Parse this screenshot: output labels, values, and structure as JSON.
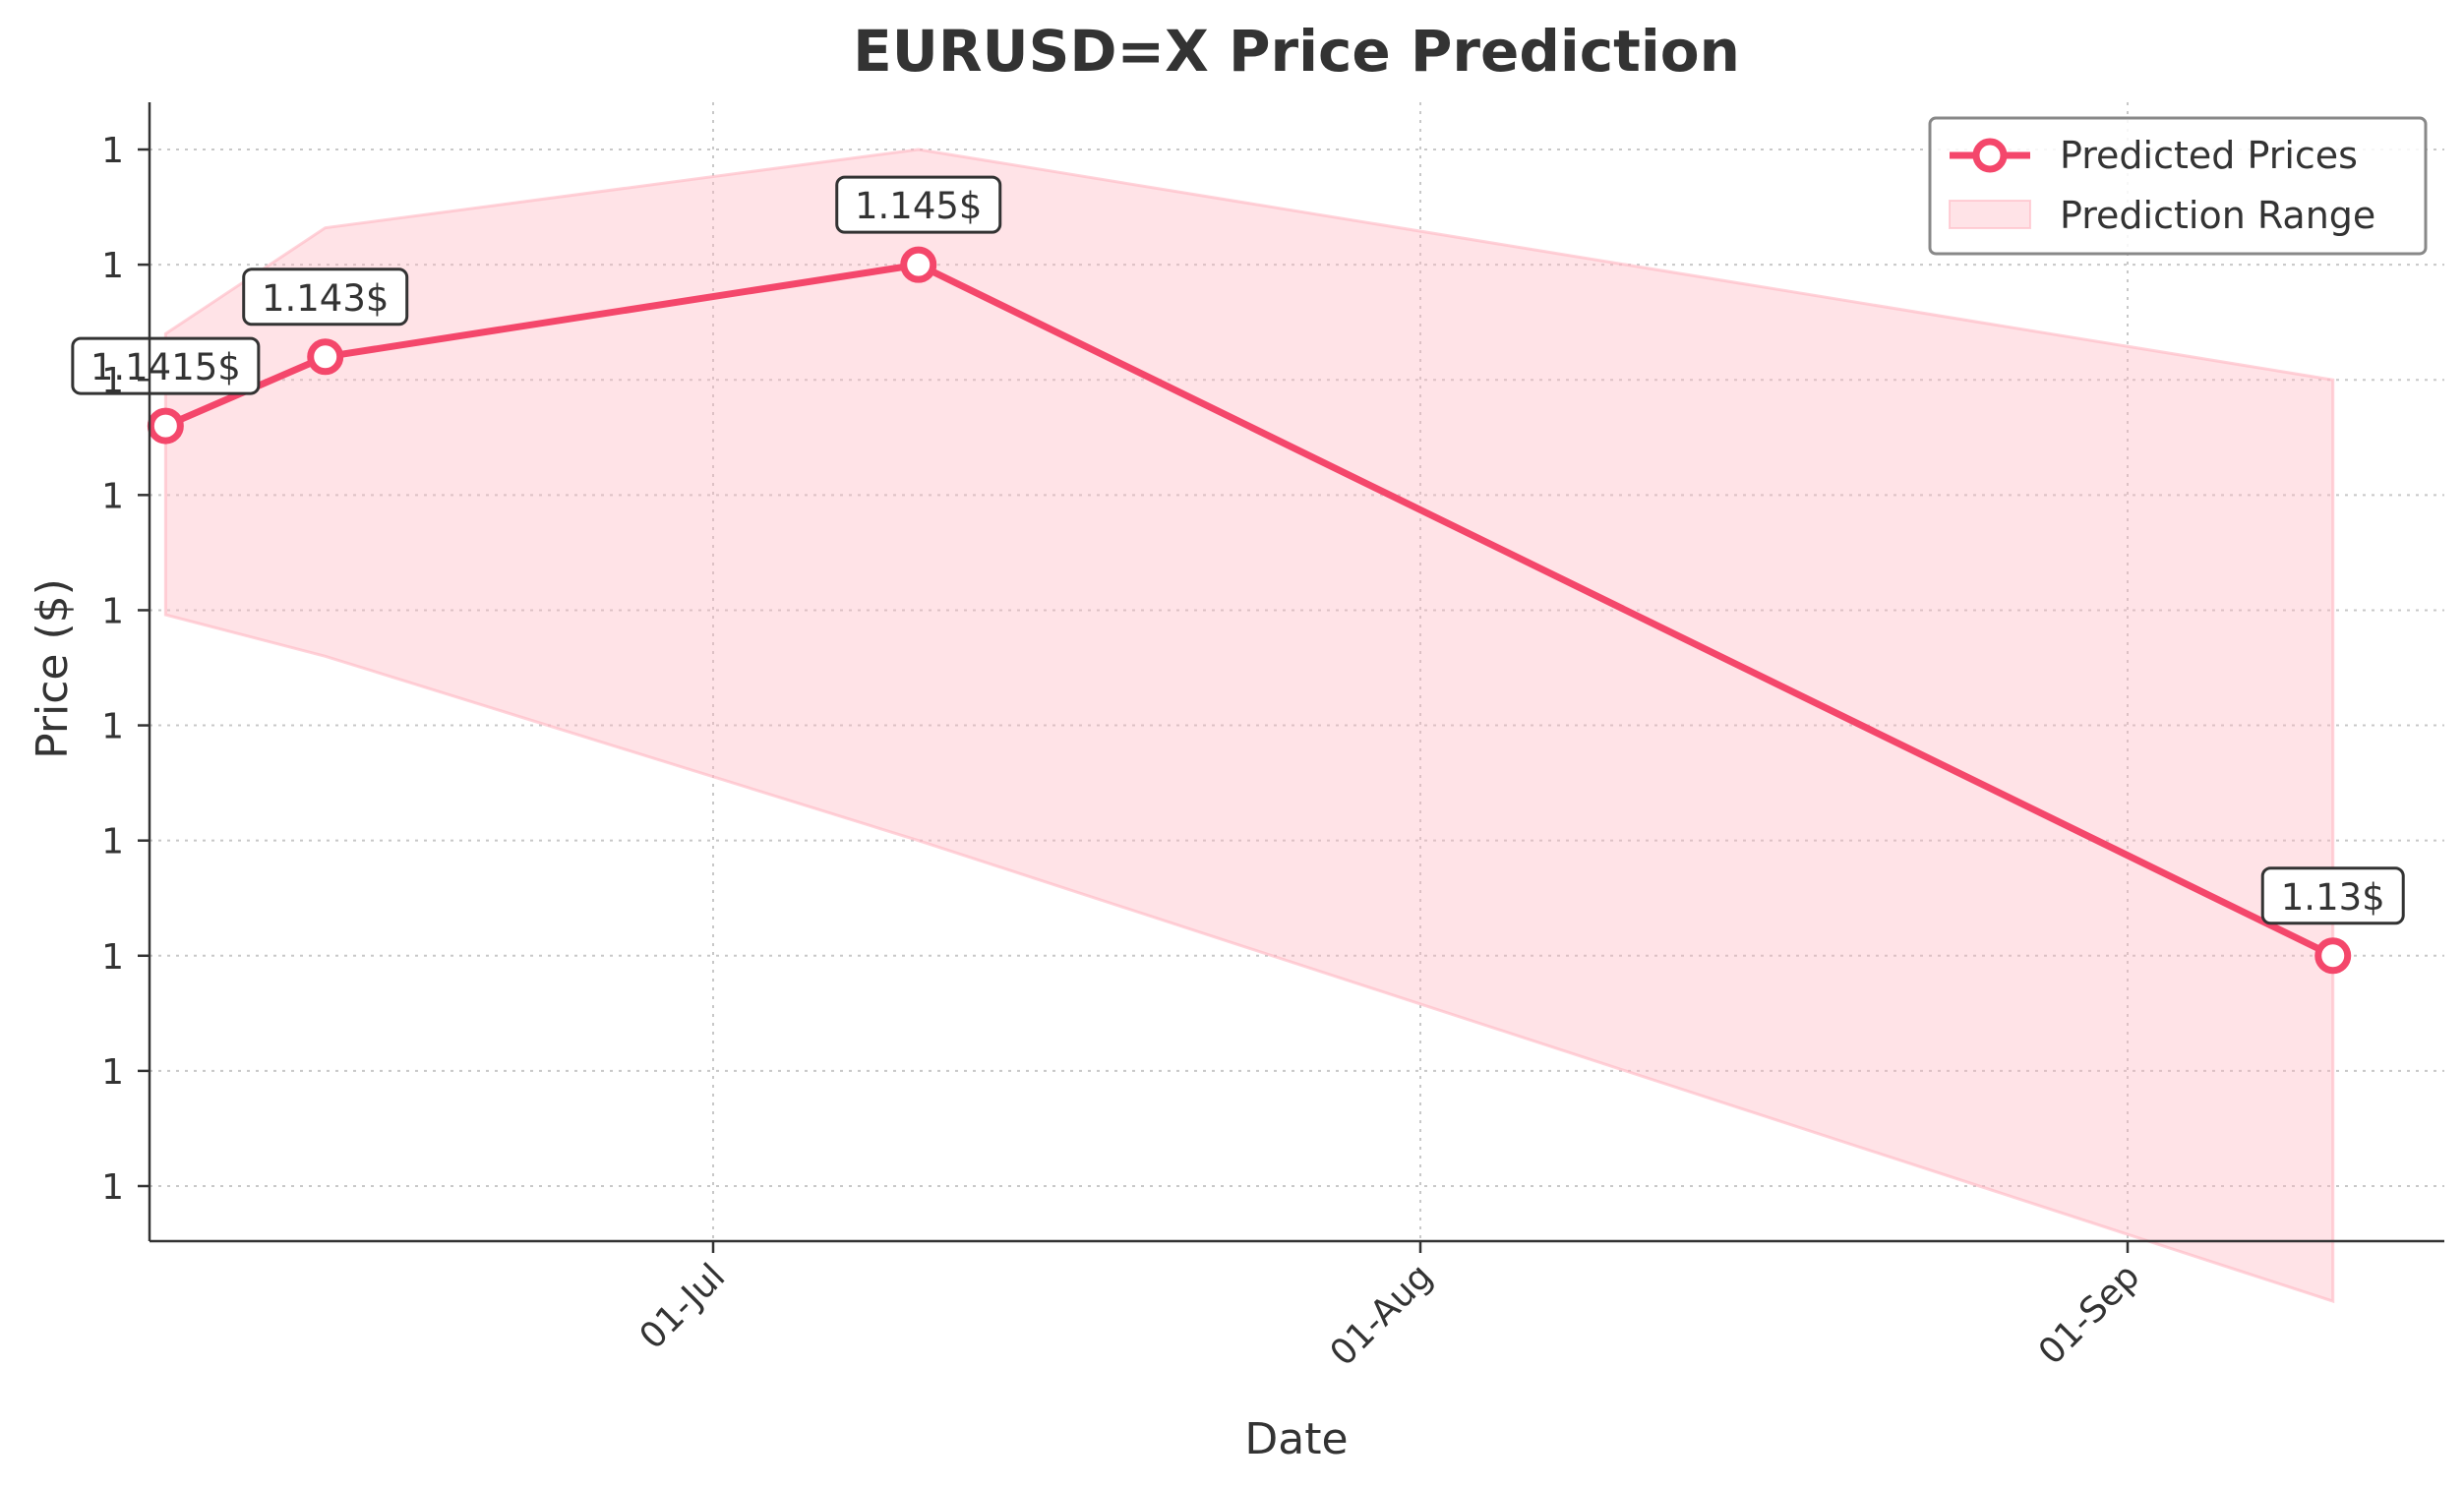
{
  "chart_data": {
    "type": "line",
    "title": "EURUSD=X Price Prediction",
    "xlabel": "Date",
    "ylabel": "Price ($)",
    "x_ticks": [
      "2025-07-01",
      "2025-08-01",
      "2025-09-01"
    ],
    "x_tick_labels": [
      "01-Jul",
      "01-Aug",
      "01-Sep"
    ],
    "x_range": [
      "2025-06-06",
      "2025-09-15"
    ],
    "y_range": [
      1.1225,
      1.1465
    ],
    "y_ticks": [
      1.125,
      1.1275,
      1.13,
      1.1325,
      1.135,
      1.1375,
      1.14,
      1.1425,
      1.145,
      1.1475
    ],
    "y_tick_labels": [
      "1",
      "1",
      "1",
      "1",
      "1",
      "1",
      "1",
      "1",
      "1",
      "1"
    ],
    "grid": true,
    "legend": {
      "position": "top-right",
      "entries": [
        "Predicted Prices",
        "Prediction Range"
      ]
    },
    "series": [
      {
        "name": "Predicted Prices",
        "style": "line-with-circle-markers",
        "color": "#f4476b",
        "x": [
          "2025-06-07",
          "2025-06-14",
          "2025-07-10",
          "2025-09-10"
        ],
        "values": [
          1.1415,
          1.143,
          1.145,
          1.13
        ]
      },
      {
        "name": "Prediction Range",
        "style": "band",
        "color": "#ffb6c1",
        "x": [
          "2025-06-07",
          "2025-06-14",
          "2025-07-10",
          "2025-09-10"
        ],
        "lower": [
          1.1374,
          1.1365,
          1.1325,
          1.1225
        ],
        "upper": [
          1.1435,
          1.1458,
          1.1475,
          1.1425
        ]
      }
    ],
    "annotations": [
      {
        "x": "2025-06-07",
        "y": 1.1415,
        "text": "1.1415$"
      },
      {
        "x": "2025-06-14",
        "y": 1.143,
        "text": "1.143$"
      },
      {
        "x": "2025-07-10",
        "y": 1.145,
        "text": "1.145$"
      },
      {
        "x": "2025-09-10",
        "y": 1.13,
        "text": "1.13$"
      }
    ]
  }
}
